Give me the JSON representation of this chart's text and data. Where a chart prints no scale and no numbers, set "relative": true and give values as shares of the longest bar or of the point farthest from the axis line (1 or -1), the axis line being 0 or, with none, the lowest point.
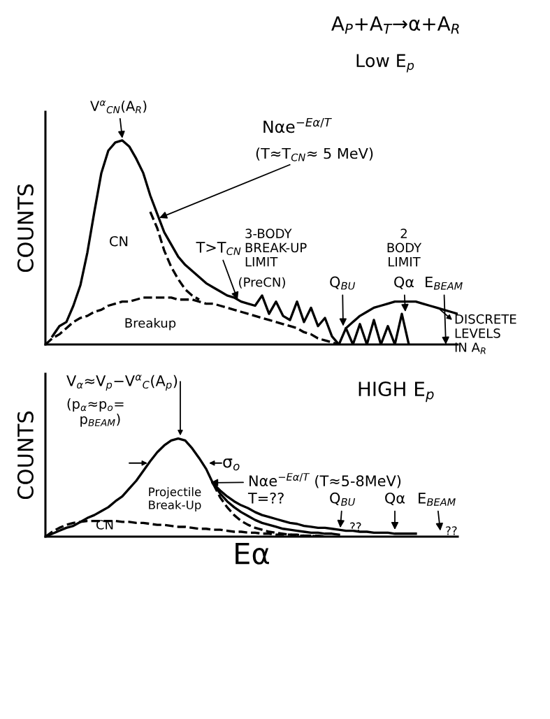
{
  "chart_data": [
    {
      "type": "line",
      "relative": true,
      "title": "A$_{P}$+A$_{T}$→α+A$_{R}$",
      "subtitle": "Low E$_{p}$",
      "ylabel": "COUNTS",
      "categories": [
        null,
        null,
        null,
        null,
        null,
        null,
        null,
        null,
        null,
        null,
        null,
        null,
        null,
        null,
        null,
        null,
        null,
        null,
        null,
        null,
        null,
        null,
        null,
        null,
        null,
        null,
        null,
        null,
        null,
        null,
        null,
        null,
        null,
        null,
        null,
        null,
        null,
        null,
        null,
        null,
        null,
        null,
        null,
        null,
        null,
        null,
        null,
        null,
        null,
        null,
        null,
        null,
        null,
        null,
        null,
        null,
        null,
        null,
        null,
        null
      ],
      "series": [
        {
          "color": "#000000",
          "line_style": "solid",
          "values": [
            null,
            0.04,
            0.09,
            0.11,
            0.19,
            0.29,
            0.45,
            0.65,
            0.84,
            0.95,
            0.99,
            1,
            0.97,
            0.91,
            0.84,
            0.73,
            0.64,
            0.55,
            0.49,
            0.43,
            0.39,
            0.36,
            0.33,
            0.3,
            0.28,
            0.26,
            0.24,
            0.23,
            0.21,
            0.2,
            0.19,
            0.24,
            0.15,
            0.21,
            0.14,
            0.12,
            0.21,
            0.11,
            0.18,
            0.09,
            0.13,
            0.04,
            0,
            null,
            null,
            null,
            null,
            null,
            null,
            null,
            null,
            null,
            null,
            null,
            null,
            null,
            null,
            null,
            null,
            null
          ]
        },
        {
          "color": "#000000",
          "line_style": "dashed",
          "values": [
            null,
            null,
            null,
            null,
            null,
            null,
            null,
            null,
            null,
            null,
            null,
            null,
            null,
            null,
            null,
            0.65,
            0.57,
            0.46,
            0.38,
            0.32,
            0.27,
            0.24,
            0.22,
            null,
            null,
            null,
            null,
            null,
            null,
            null,
            null,
            null,
            null,
            null,
            null,
            null,
            null,
            null,
            null,
            null,
            null,
            null,
            null,
            null,
            null,
            null,
            null,
            null,
            null,
            null,
            null,
            null,
            null,
            null,
            null,
            null,
            null,
            null,
            null,
            null
          ]
        },
        {
          "color": "#000000",
          "line_style": "dashed",
          "values": [
            0,
            0.03,
            0.05,
            0.08,
            0.11,
            0.13,
            0.14,
            0.16,
            0.17,
            0.19,
            0.2,
            0.21,
            0.21,
            0.22,
            0.23,
            0.23,
            0.23,
            0.23,
            0.23,
            0.22,
            0.22,
            0.22,
            0.21,
            0.2,
            0.2,
            0.19,
            0.18,
            0.17,
            0.16,
            0.15,
            0.14,
            0.13,
            0.12,
            0.11,
            0.1,
            0.09,
            0.08,
            0.06,
            0.05,
            0.03,
            0.02,
            0.01,
            0,
            null,
            null,
            null,
            null,
            null,
            null,
            null,
            null,
            null,
            null,
            null,
            null,
            null,
            null,
            null,
            null,
            null
          ]
        },
        {
          "color": "#000000",
          "line_style": "solid",
          "values": [
            null,
            null,
            null,
            null,
            null,
            null,
            null,
            null,
            null,
            null,
            null,
            null,
            null,
            null,
            null,
            null,
            null,
            null,
            null,
            null,
            null,
            null,
            null,
            null,
            null,
            null,
            null,
            null,
            null,
            null,
            null,
            null,
            null,
            null,
            null,
            null,
            null,
            null,
            null,
            null,
            null,
            null,
            0,
            0.08,
            0,
            0.1,
            0,
            0.12,
            0,
            0.09,
            0,
            0.15,
            0,
            null,
            null,
            null,
            null,
            null,
            null,
            null
          ]
        },
        {
          "color": "#000000",
          "line_style": "solid",
          "values": [
            null,
            null,
            null,
            null,
            null,
            null,
            null,
            null,
            null,
            null,
            null,
            null,
            null,
            null,
            null,
            null,
            null,
            null,
            null,
            null,
            null,
            null,
            null,
            null,
            null,
            null,
            null,
            null,
            null,
            null,
            null,
            null,
            null,
            null,
            null,
            null,
            null,
            null,
            null,
            null,
            null,
            null,
            null,
            0.08,
            0.11,
            0.14,
            0.16,
            0.18,
            0.19,
            0.2,
            0.21,
            0.21,
            0.21,
            0.21,
            0.2,
            0.19,
            0.18,
            0.17,
            0.16,
            0.15
          ]
        }
      ],
      "annotations": [
        "V$^{α}$$_{CN}$(A$_{R}$)",
        "Nαe$^{−Eα/T}$",
        "(T≈T$_{CN}$≈ 5 MeV)",
        "CN",
        "Breakup",
        "T>T$_{CN}$",
        "(PreCN)",
        "3-BODY\nBREAK-UP\nLIMIT",
        "2\nBODY\nLIMIT",
        "Q$_{BU}$",
        "Qα",
        "E$_{BEAM}$",
        "DISCRETE\nLEVELS\nIN A$_{R}$"
      ]
    },
    {
      "type": "line",
      "relative": true,
      "title": "HIGH E$_{p}$",
      "xlabel": "Eα",
      "ylabel": "COUNTS",
      "categories": [
        null,
        null,
        null,
        null,
        null,
        null,
        null,
        null,
        null,
        null,
        null,
        null,
        null,
        null,
        null,
        null,
        null,
        null,
        null,
        null,
        null,
        null,
        null,
        null,
        null,
        null,
        null,
        null,
        null,
        null,
        null,
        null,
        null,
        null,
        null,
        null,
        null,
        null,
        null,
        null,
        null,
        null,
        null,
        null,
        null,
        null,
        null,
        null,
        null,
        null,
        null,
        null,
        null,
        null,
        null,
        null,
        null,
        null,
        null,
        null
      ],
      "series": [
        {
          "color": "#000000",
          "line_style": "solid",
          "values": [
            0,
            0.03,
            0.06,
            0.09,
            0.11,
            0.15,
            0.19,
            0.22,
            0.26,
            0.3,
            0.36,
            0.41,
            0.49,
            0.57,
            0.67,
            0.77,
            0.86,
            0.93,
            0.98,
            1,
            0.98,
            0.9,
            0.8,
            0.69,
            0.54,
            0.47,
            0.41,
            0.36,
            0.32,
            0.29,
            0.25,
            0.22,
            0.2,
            0.18,
            0.16,
            0.14,
            0.13,
            0.11,
            0.1,
            0.09,
            0.09,
            0.08,
            0.07,
            0.06,
            0.06,
            0.05,
            0.05,
            0.04,
            0.04,
            0.04,
            0.03,
            0.03,
            0.03,
            0.03,
            null,
            null,
            null,
            null,
            null,
            null
          ]
        },
        {
          "color": "#000000",
          "line_style": "solid",
          "values": [
            null,
            null,
            null,
            null,
            null,
            null,
            null,
            null,
            null,
            null,
            null,
            null,
            null,
            null,
            null,
            null,
            null,
            null,
            null,
            null,
            null,
            null,
            null,
            null,
            0.54,
            0.44,
            0.36,
            0.3,
            0.25,
            0.21,
            0.17,
            0.14,
            0.12,
            0.1,
            0.08,
            0.07,
            0.06,
            0.05,
            0.04,
            0.04,
            0.03,
            0.03,
            0.02,
            null,
            null,
            null,
            null,
            null,
            null,
            null,
            null,
            null,
            null,
            null,
            null,
            null,
            null,
            null,
            null,
            null
          ]
        },
        {
          "color": "#000000",
          "line_style": "dashed",
          "values": [
            null,
            null,
            null,
            null,
            null,
            null,
            null,
            null,
            null,
            null,
            null,
            null,
            null,
            null,
            null,
            null,
            null,
            null,
            null,
            null,
            null,
            null,
            null,
            null,
            0.54,
            0.4,
            0.3,
            0.22,
            0.16,
            0.12,
            0.09,
            0.07,
            0.05,
            0.04,
            0.03,
            0.02,
            0.02,
            0.01,
            0.01,
            0.01,
            0,
            null,
            null,
            null,
            null,
            null,
            null,
            null,
            null,
            null,
            null,
            null,
            null,
            null,
            null,
            null,
            null,
            null,
            null,
            null
          ]
        },
        {
          "color": "#000000",
          "line_style": "dashed",
          "values": [
            0,
            0.05,
            0.09,
            0.12,
            0.14,
            0.15,
            0.16,
            0.16,
            0.16,
            0.16,
            0.16,
            0.15,
            0.15,
            0.14,
            0.14,
            0.13,
            0.12,
            0.12,
            0.11,
            0.1,
            0.1,
            0.09,
            0.08,
            0.08,
            0.07,
            0.07,
            0.06,
            0.05,
            0.05,
            0.04,
            0.04,
            0.03,
            0.03,
            0.02,
            0.02,
            0.02,
            0.01,
            0.01,
            0.01,
            0,
            0,
            null,
            null,
            null,
            null,
            null,
            null,
            null,
            null,
            null,
            null,
            null,
            null,
            null,
            null,
            null,
            null,
            null,
            null,
            null
          ]
        }
      ],
      "annotations": [
        "V$_{α}$≈V$_{p}$−V$^{α}$$_{C}$(A$_{p}$)",
        "(p$_{α}$≈p$_{o}$=\n   p$_{BEAM}$)",
        "σ$_{o}$",
        "Nαe$^{−Eα/T}$ (T≈5-8MeV)",
        "T=??",
        "Projectile\nBreak-Up",
        "CN",
        "Q$_{BU}$",
        "Qα",
        "E$_{BEAM}$",
        "??",
        "??"
      ]
    }
  ]
}
